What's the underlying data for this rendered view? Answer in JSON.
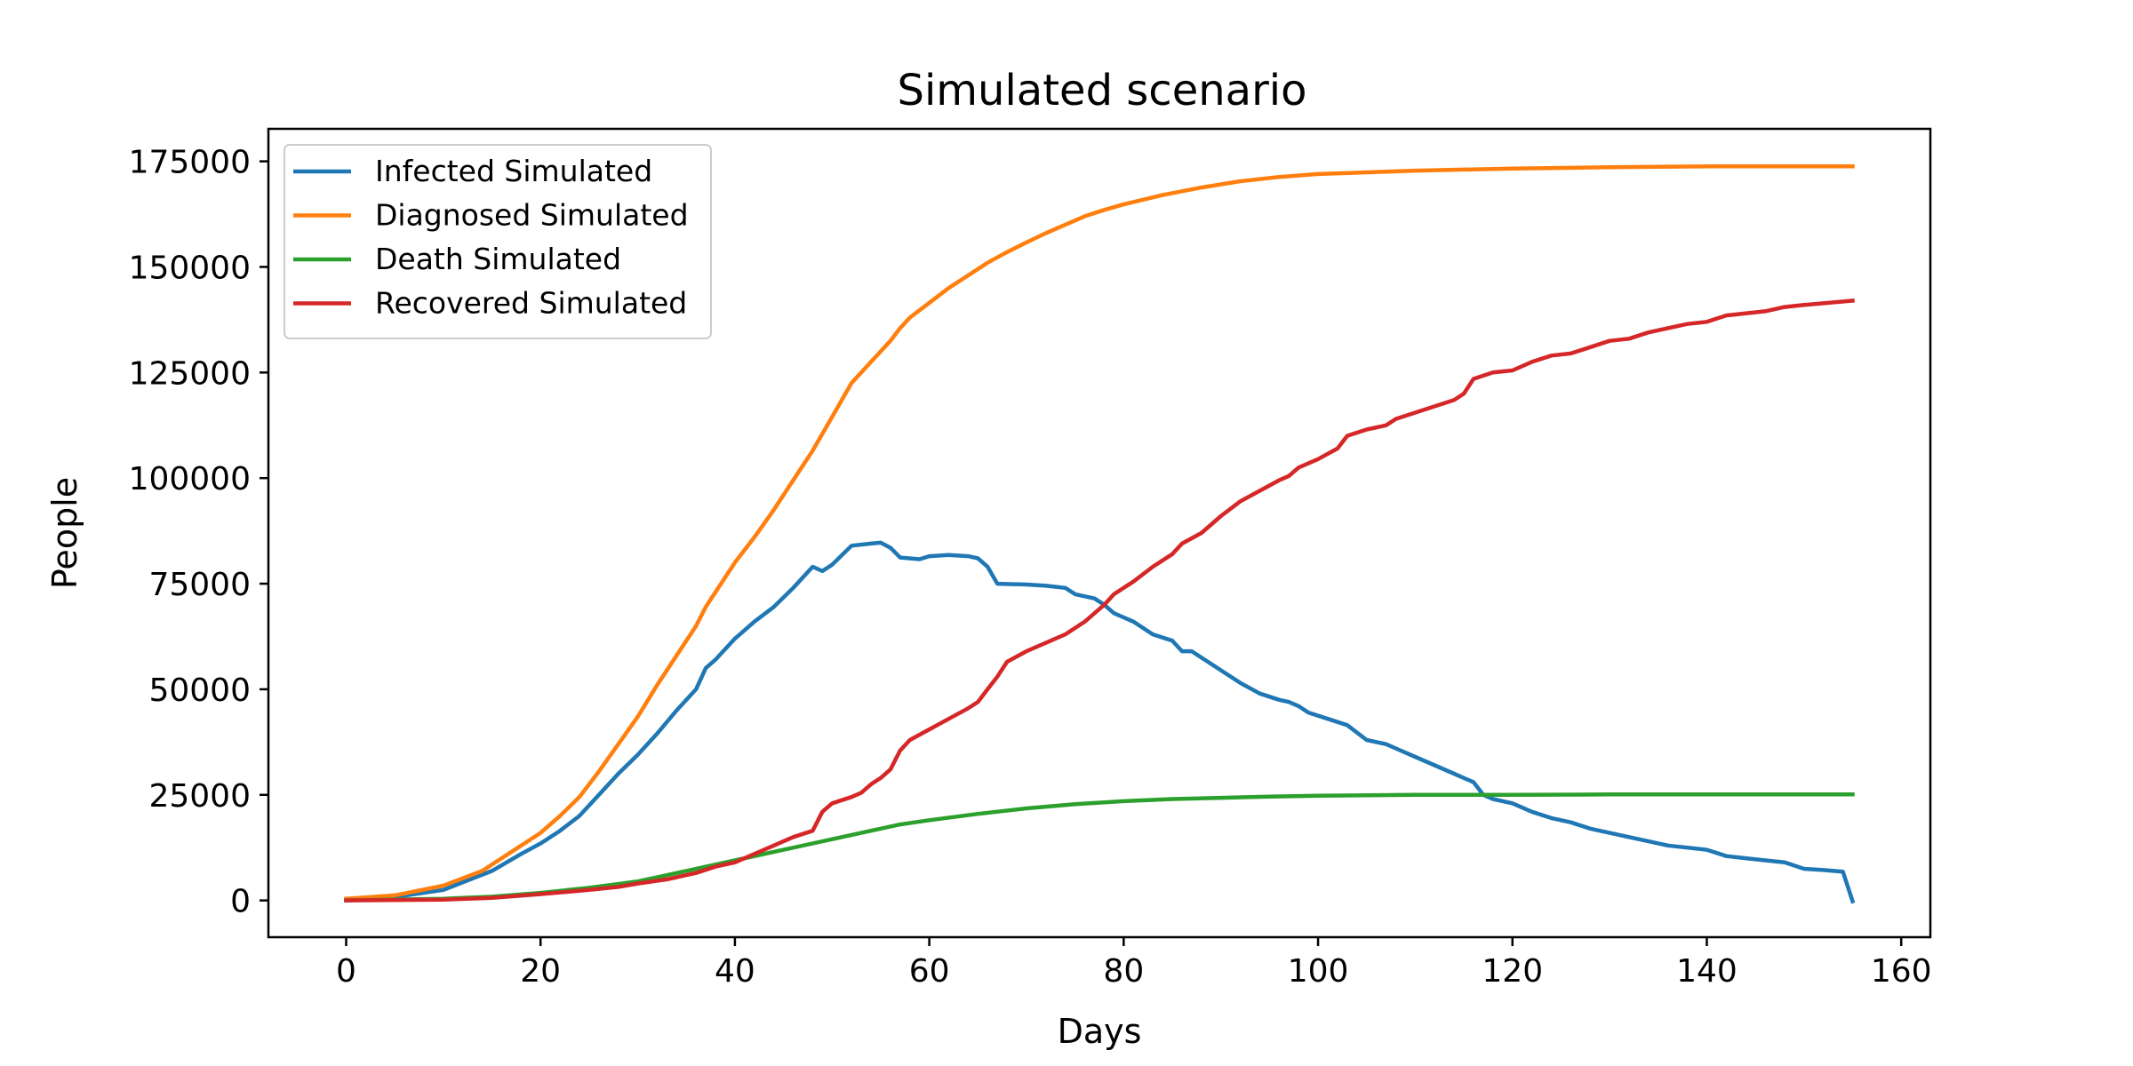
{
  "chart_data": {
    "type": "line",
    "title": "Simulated scenario",
    "xlabel": "Days",
    "ylabel": "People",
    "xlim": [
      -8,
      163
    ],
    "ylim": [
      -8700,
      182700
    ],
    "xticks": [
      0,
      20,
      40,
      60,
      80,
      100,
      120,
      140,
      160
    ],
    "yticks": [
      0,
      25000,
      50000,
      75000,
      100000,
      125000,
      150000,
      175000
    ],
    "grid": false,
    "legend_position": "top-left",
    "series": [
      {
        "name": "Infected Simulated",
        "color": "#1f77b4",
        "points": [
          [
            0,
            0
          ],
          [
            5,
            800
          ],
          [
            10,
            2500
          ],
          [
            15,
            7000
          ],
          [
            18,
            11000
          ],
          [
            20,
            13500
          ],
          [
            22,
            16500
          ],
          [
            24,
            20000
          ],
          [
            26,
            25000
          ],
          [
            28,
            30000
          ],
          [
            30,
            34500
          ],
          [
            32,
            39500
          ],
          [
            34,
            45000
          ],
          [
            36,
            50000
          ],
          [
            37,
            55000
          ],
          [
            38,
            57000
          ],
          [
            40,
            62000
          ],
          [
            42,
            66000
          ],
          [
            44,
            69500
          ],
          [
            46,
            74000
          ],
          [
            48,
            79000
          ],
          [
            49,
            78000
          ],
          [
            50,
            79500
          ],
          [
            52,
            84000
          ],
          [
            54,
            84500
          ],
          [
            55,
            84700
          ],
          [
            56,
            83500
          ],
          [
            57,
            81200
          ],
          [
            59,
            80800
          ],
          [
            60,
            81500
          ],
          [
            62,
            81800
          ],
          [
            64,
            81500
          ],
          [
            65,
            81000
          ],
          [
            66,
            79000
          ],
          [
            67,
            75000
          ],
          [
            70,
            74800
          ],
          [
            72,
            74500
          ],
          [
            74,
            74000
          ],
          [
            75,
            72500
          ],
          [
            77,
            71500
          ],
          [
            78,
            70000
          ],
          [
            79,
            68000
          ],
          [
            81,
            66000
          ],
          [
            83,
            63000
          ],
          [
            85,
            61500
          ],
          [
            86,
            59000
          ],
          [
            87,
            59000
          ],
          [
            88,
            57500
          ],
          [
            90,
            54500
          ],
          [
            92,
            51500
          ],
          [
            94,
            49000
          ],
          [
            96,
            47500
          ],
          [
            97,
            47000
          ],
          [
            98,
            46000
          ],
          [
            99,
            44500
          ],
          [
            101,
            43000
          ],
          [
            103,
            41500
          ],
          [
            105,
            38000
          ],
          [
            107,
            37000
          ],
          [
            108,
            36000
          ],
          [
            110,
            34000
          ],
          [
            112,
            32000
          ],
          [
            114,
            30000
          ],
          [
            115,
            29000
          ],
          [
            116,
            28000
          ],
          [
            117,
            25000
          ],
          [
            118,
            24000
          ],
          [
            120,
            23000
          ],
          [
            122,
            21000
          ],
          [
            124,
            19500
          ],
          [
            126,
            18500
          ],
          [
            128,
            17000
          ],
          [
            130,
            16000
          ],
          [
            132,
            15000
          ],
          [
            134,
            14000
          ],
          [
            136,
            13000
          ],
          [
            138,
            12500
          ],
          [
            140,
            12000
          ],
          [
            142,
            10500
          ],
          [
            144,
            10000
          ],
          [
            146,
            9500
          ],
          [
            148,
            9000
          ],
          [
            150,
            7500
          ],
          [
            152,
            7200
          ],
          [
            154,
            6800
          ],
          [
            155,
            -200
          ]
        ]
      },
      {
        "name": "Diagnosed Simulated",
        "color": "#ff7f0e",
        "points": [
          [
            0,
            400
          ],
          [
            5,
            1200
          ],
          [
            10,
            3500
          ],
          [
            14,
            7000
          ],
          [
            17,
            11500
          ],
          [
            20,
            16000
          ],
          [
            22,
            20000
          ],
          [
            24,
            24500
          ],
          [
            26,
            30500
          ],
          [
            28,
            37000
          ],
          [
            30,
            43500
          ],
          [
            32,
            51000
          ],
          [
            34,
            58000
          ],
          [
            36,
            65000
          ],
          [
            37,
            69500
          ],
          [
            38,
            73000
          ],
          [
            40,
            80000
          ],
          [
            42,
            86000
          ],
          [
            44,
            92500
          ],
          [
            46,
            99500
          ],
          [
            48,
            106500
          ],
          [
            50,
            114500
          ],
          [
            52,
            122500
          ],
          [
            54,
            127500
          ],
          [
            56,
            132500
          ],
          [
            57,
            135500
          ],
          [
            58,
            138000
          ],
          [
            60,
            141500
          ],
          [
            62,
            145000
          ],
          [
            64,
            148000
          ],
          [
            66,
            151000
          ],
          [
            68,
            153500
          ],
          [
            70,
            155800
          ],
          [
            72,
            158000
          ],
          [
            74,
            160000
          ],
          [
            76,
            162000
          ],
          [
            78,
            163500
          ],
          [
            80,
            164800
          ],
          [
            84,
            167000
          ],
          [
            88,
            168800
          ],
          [
            92,
            170300
          ],
          [
            96,
            171300
          ],
          [
            100,
            172000
          ],
          [
            110,
            172800
          ],
          [
            120,
            173300
          ],
          [
            130,
            173600
          ],
          [
            140,
            173800
          ],
          [
            155,
            173800
          ]
        ]
      },
      {
        "name": "Death Simulated",
        "color": "#2ca02c",
        "points": [
          [
            0,
            0
          ],
          [
            10,
            400
          ],
          [
            15,
            900
          ],
          [
            20,
            1800
          ],
          [
            25,
            3000
          ],
          [
            30,
            4500
          ],
          [
            35,
            7000
          ],
          [
            40,
            9500
          ],
          [
            45,
            12000
          ],
          [
            50,
            14500
          ],
          [
            55,
            17000
          ],
          [
            57,
            18000
          ],
          [
            60,
            19000
          ],
          [
            65,
            20500
          ],
          [
            70,
            21800
          ],
          [
            75,
            22800
          ],
          [
            80,
            23500
          ],
          [
            85,
            24000
          ],
          [
            90,
            24300
          ],
          [
            95,
            24600
          ],
          [
            100,
            24800
          ],
          [
            110,
            25000
          ],
          [
            120,
            25000
          ],
          [
            130,
            25100
          ],
          [
            140,
            25100
          ],
          [
            155,
            25100
          ]
        ]
      },
      {
        "name": "Recovered Simulated",
        "color": "#d62728",
        "points": [
          [
            0,
            0
          ],
          [
            10,
            200
          ],
          [
            15,
            600
          ],
          [
            20,
            1500
          ],
          [
            25,
            2500
          ],
          [
            28,
            3200
          ],
          [
            30,
            4000
          ],
          [
            33,
            5000
          ],
          [
            36,
            6500
          ],
          [
            38,
            8000
          ],
          [
            40,
            9000
          ],
          [
            42,
            11000
          ],
          [
            44,
            13000
          ],
          [
            46,
            15000
          ],
          [
            48,
            16500
          ],
          [
            49,
            21000
          ],
          [
            50,
            23000
          ],
          [
            52,
            24500
          ],
          [
            53,
            25500
          ],
          [
            54,
            27500
          ],
          [
            55,
            29000
          ],
          [
            56,
            31000
          ],
          [
            57,
            35500
          ],
          [
            58,
            38000
          ],
          [
            60,
            40500
          ],
          [
            62,
            43000
          ],
          [
            64,
            45500
          ],
          [
            65,
            47000
          ],
          [
            66,
            50000
          ],
          [
            67,
            53000
          ],
          [
            68,
            56500
          ],
          [
            70,
            59000
          ],
          [
            72,
            61000
          ],
          [
            74,
            63000
          ],
          [
            76,
            66000
          ],
          [
            77,
            68000
          ],
          [
            78,
            70000
          ],
          [
            79,
            72500
          ],
          [
            81,
            75500
          ],
          [
            83,
            79000
          ],
          [
            85,
            82000
          ],
          [
            86,
            84500
          ],
          [
            88,
            87000
          ],
          [
            90,
            91000
          ],
          [
            92,
            94500
          ],
          [
            94,
            97000
          ],
          [
            96,
            99500
          ],
          [
            97,
            100500
          ],
          [
            98,
            102500
          ],
          [
            100,
            104500
          ],
          [
            102,
            107000
          ],
          [
            103,
            110000
          ],
          [
            105,
            111500
          ],
          [
            107,
            112500
          ],
          [
            108,
            114000
          ],
          [
            110,
            115500
          ],
          [
            112,
            117000
          ],
          [
            114,
            118500
          ],
          [
            115,
            120000
          ],
          [
            116,
            123500
          ],
          [
            118,
            125000
          ],
          [
            120,
            125500
          ],
          [
            122,
            127500
          ],
          [
            124,
            129000
          ],
          [
            126,
            129500
          ],
          [
            128,
            131000
          ],
          [
            130,
            132500
          ],
          [
            132,
            133000
          ],
          [
            134,
            134500
          ],
          [
            136,
            135500
          ],
          [
            138,
            136500
          ],
          [
            140,
            137000
          ],
          [
            142,
            138500
          ],
          [
            144,
            139000
          ],
          [
            146,
            139500
          ],
          [
            148,
            140500
          ],
          [
            150,
            141000
          ],
          [
            155,
            142000
          ]
        ]
      }
    ]
  }
}
